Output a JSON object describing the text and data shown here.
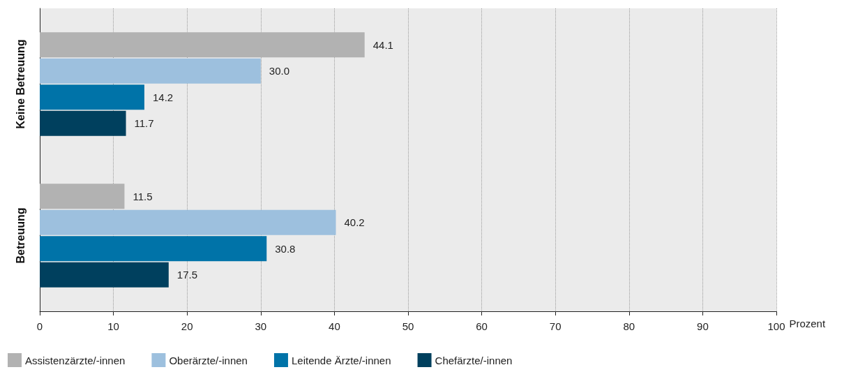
{
  "chart_data": {
    "type": "bar",
    "orientation": "horizontal",
    "xlabel": "Prozent",
    "categories": [
      "Keine Betreuung",
      "Betreuung"
    ],
    "series": [
      {
        "name": "Assistenzärzte/-innen",
        "color": "#b2b2b2",
        "values": [
          44.1,
          11.5
        ],
        "value_labels": [
          "44.1",
          "11.5"
        ]
      },
      {
        "name": "Oberärzte/-innen",
        "color": "#9dc0de",
        "values": [
          30.0,
          40.2
        ],
        "value_labels": [
          "30.0",
          "40.2"
        ]
      },
      {
        "name": "Leitende Ärzte/-innen",
        "color": "#0073a8",
        "values": [
          14.2,
          30.8
        ],
        "value_labels": [
          "14.2",
          "30.8"
        ]
      },
      {
        "name": "Chefärzte/-innen",
        "color": "#00405e",
        "values": [
          11.7,
          17.5
        ],
        "value_labels": [
          "11.7",
          "17.5"
        ]
      }
    ],
    "xlim": [
      0,
      100
    ],
    "xticks": [
      0,
      10,
      20,
      30,
      40,
      50,
      60,
      70,
      80,
      90,
      100
    ],
    "grid": "x",
    "legend": "bottom left"
  }
}
